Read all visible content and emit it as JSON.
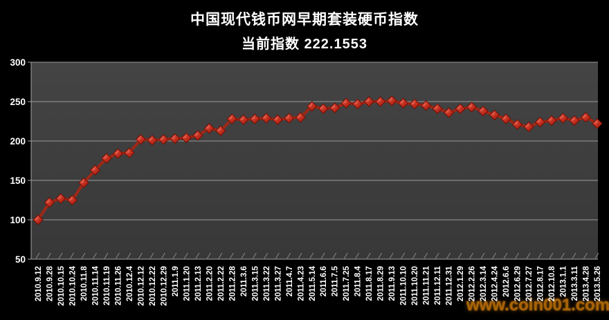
{
  "header": {
    "title": "中国现代钱币网早期套装硬币指数",
    "subtitle": "当前指数 222.1553",
    "current_index": "222.1553"
  },
  "watermark": {
    "text": "www.coin001.com",
    "color": "#a96408"
  },
  "chart_data": {
    "type": "line",
    "title": "中国现代钱币网早期套装硬币指数",
    "subtitle": "当前指数 222.1553",
    "categories": [
      "2010.9.12",
      "2010.9.28",
      "2010.10.15",
      "2010.10.24",
      "2010.11.8",
      "2010.11.14",
      "2010.11.19",
      "2010.11.26",
      "2010.12.4",
      "2010.12.12",
      "2010.12.22",
      "2010.12.29",
      "2011.1.9",
      "2011.1.20",
      "2011.2.13",
      "2011.2.20",
      "2011.2.22",
      "2011.2.28",
      "2011.3.6",
      "2011.3.15",
      "2011.3.22",
      "2011.3.27",
      "2011.4.7",
      "2011.4.23",
      "2011.5.14",
      "2011.6.6",
      "2011.7.5",
      "2011.7.25",
      "2011.8.4",
      "2011.8.17",
      "2011.8.29",
      "2011.9.13",
      "2011.10.10",
      "2011.10.20",
      "2011.11.21",
      "2011.12.11",
      "2011.12.31",
      "2012.1.29",
      "2012.2.26",
      "2012.3.14",
      "2012.4.24",
      "2012.6.6",
      "2012.6.29",
      "2012.7.27",
      "2012.8.17",
      "2012.10.8",
      "2013.1.1",
      "2013.3.11",
      "2013.4.28",
      "2013.5.26"
    ],
    "values": [
      100,
      122,
      127,
      125,
      147,
      163,
      178,
      184,
      185,
      202,
      201,
      202,
      203,
      204,
      207,
      216,
      213,
      228,
      227,
      228,
      229,
      227,
      229,
      230,
      244,
      241,
      242,
      248,
      247,
      250,
      250,
      251,
      248,
      247,
      245,
      241,
      236,
      241,
      243,
      238,
      233,
      228,
      221,
      218,
      224,
      226,
      229,
      226,
      230,
      222.1553
    ],
    "ylim": [
      50,
      300
    ],
    "yticks": [
      50,
      100,
      150,
      200,
      250,
      300
    ],
    "xlabel": "",
    "ylabel": "",
    "grid": true,
    "legend": false,
    "marker": "diamond-3d",
    "colors": {
      "background": "#000000",
      "plot_bg_top": "#444444",
      "plot_bg_bottom": "#383838",
      "gridline": "#9b9b9b",
      "axis": "#a8a8a8",
      "line": "#9e2817",
      "marker_light": "#e2594a",
      "marker_dark": "#991507",
      "marker_edge": "#6f0f05",
      "text": "#ffffff"
    }
  }
}
